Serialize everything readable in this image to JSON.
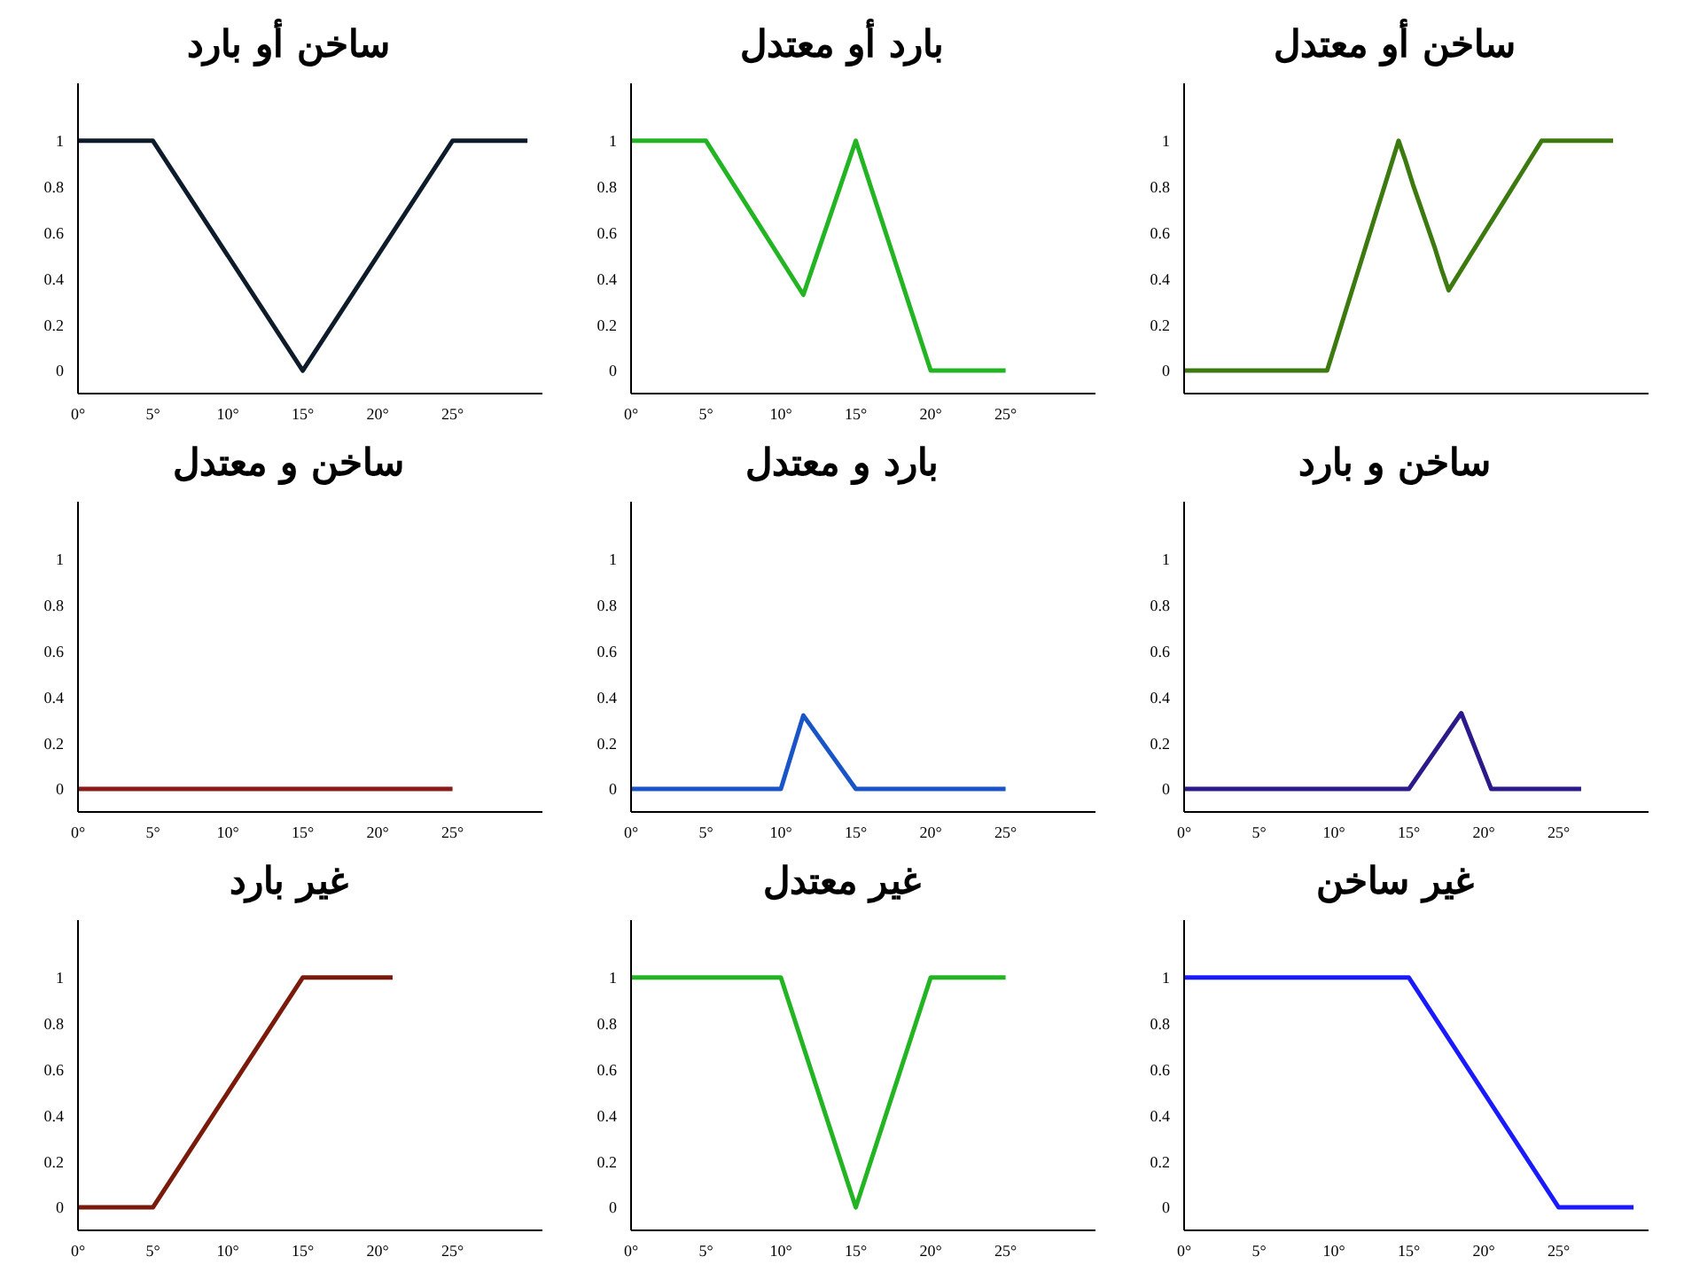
{
  "chart_data": [
    {
      "type": "line",
      "title": "ساخن أو بارد",
      "x": [
        0,
        5,
        15,
        25,
        30
      ],
      "values": [
        1,
        1,
        0,
        1,
        1
      ],
      "color": "#0d1b2a",
      "xlim": [
        0,
        31
      ],
      "xticks": [
        {
          "value": 0,
          "label": "0°"
        },
        {
          "value": 5,
          "label": "5°"
        },
        {
          "value": 10,
          "label": "10°"
        },
        {
          "value": 15,
          "label": "15°"
        },
        {
          "value": 20,
          "label": "20°"
        },
        {
          "value": 25,
          "label": "25°"
        }
      ],
      "ylim": [
        -0.1,
        1.25
      ],
      "yticks": [
        0,
        0.2,
        0.4,
        0.6,
        0.8,
        1
      ],
      "grid": false,
      "marker": "none"
    },
    {
      "type": "line",
      "title": "بارد أو معتدل",
      "x": [
        0,
        5,
        11.5,
        15,
        20,
        25
      ],
      "values": [
        1,
        1,
        0.33,
        1,
        0,
        0
      ],
      "color": "#22b422",
      "xlim": [
        0,
        31
      ],
      "xticks": [
        {
          "value": 0,
          "label": "0°"
        },
        {
          "value": 5,
          "label": "5°"
        },
        {
          "value": 10,
          "label": "10°"
        },
        {
          "value": 15,
          "label": "15°"
        },
        {
          "value": 20,
          "label": "20°"
        },
        {
          "value": 25,
          "label": "25°"
        }
      ],
      "ylim": [
        -0.1,
        1.25
      ],
      "yticks": [
        0,
        0.2,
        0.4,
        0.6,
        0.8,
        1
      ],
      "grid": false,
      "marker": "none"
    },
    {
      "type": "line",
      "title": "ساخن أو معتدل",
      "categories": [
        null,
        null,
        null,
        null,
        null,
        null,
        null,
        null,
        null,
        null,
        null,
        null,
        null,
        null,
        null,
        null,
        null,
        null,
        null,
        null,
        null,
        null,
        null,
        null,
        null,
        null,
        null,
        null,
        null,
        null,
        null,
        null,
        null,
        null,
        null,
        null,
        null,
        null,
        null,
        null,
        null,
        null,
        null,
        null,
        null,
        null,
        null,
        null,
        null,
        null,
        null,
        null,
        null,
        null,
        null,
        null,
        null,
        null,
        null,
        null,
        null
      ],
      "values": [
        0,
        0,
        0,
        0,
        0,
        0,
        0,
        0,
        0,
        0,
        0,
        0,
        0,
        0,
        0,
        0,
        0,
        0,
        0,
        0,
        0,
        0.1,
        0.2,
        0.3,
        0.4,
        0.5,
        0.6,
        0.7,
        0.8,
        0.9,
        1,
        0.91,
        0.81,
        0.72,
        0.63,
        0.54,
        0.44,
        0.35,
        0.4,
        0.45,
        0.5,
        0.55,
        0.6,
        0.65,
        0.7,
        0.75,
        0.8,
        0.85,
        0.9,
        0.95,
        1,
        1,
        1,
        1,
        1,
        1,
        1,
        1,
        1,
        1,
        1
      ],
      "color": "#3c7a10",
      "ylim": [
        -0.1,
        1.25
      ],
      "yticks": [
        0,
        0.2,
        0.4,
        0.6,
        0.8,
        1
      ],
      "tick_labels": "y",
      "grid": false,
      "marker": "none"
    },
    {
      "type": "line",
      "title": "ساخن و معتدل",
      "x": [
        0,
        25
      ],
      "values": [
        0,
        0
      ],
      "color": "#8b1a1a",
      "xlim": [
        0,
        31
      ],
      "xticks": [
        {
          "value": 0,
          "label": "0°"
        },
        {
          "value": 5,
          "label": "5°"
        },
        {
          "value": 10,
          "label": "10°"
        },
        {
          "value": 15,
          "label": "15°"
        },
        {
          "value": 20,
          "label": "20°"
        },
        {
          "value": 25,
          "label": "25°"
        }
      ],
      "ylim": [
        -0.1,
        1.25
      ],
      "yticks": [
        0,
        0.2,
        0.4,
        0.6,
        0.8,
        1
      ],
      "grid": false,
      "marker": "none"
    },
    {
      "type": "line",
      "title": "بارد و معتدل",
      "x": [
        0,
        10,
        11.5,
        15,
        25
      ],
      "values": [
        0,
        0,
        0.32,
        0,
        0
      ],
      "color": "#1a55c8",
      "xlim": [
        0,
        31
      ],
      "xticks": [
        {
          "value": 0,
          "label": "0°"
        },
        {
          "value": 5,
          "label": "5°"
        },
        {
          "value": 10,
          "label": "10°"
        },
        {
          "value": 15,
          "label": "15°"
        },
        {
          "value": 20,
          "label": "20°"
        },
        {
          "value": 25,
          "label": "25°"
        }
      ],
      "ylim": [
        -0.1,
        1.25
      ],
      "yticks": [
        0,
        0.2,
        0.4,
        0.6,
        0.8,
        1
      ],
      "grid": false,
      "marker": "none"
    },
    {
      "type": "line",
      "title": "ساخن و بارد",
      "x": [
        0,
        15,
        18.5,
        20.5,
        26.5
      ],
      "values": [
        0,
        0,
        0.33,
        0,
        0
      ],
      "color": "#2a1a8a",
      "xlim": [
        0,
        31
      ],
      "xticks": [
        {
          "value": 0,
          "label": "0°"
        },
        {
          "value": 5,
          "label": "5°"
        },
        {
          "value": 10,
          "label": "10°"
        },
        {
          "value": 15,
          "label": "15°"
        },
        {
          "value": 20,
          "label": "20°"
        },
        {
          "value": 25,
          "label": "25°"
        }
      ],
      "ylim": [
        -0.1,
        1.25
      ],
      "yticks": [
        0,
        0.2,
        0.4,
        0.6,
        0.8,
        1
      ],
      "grid": false,
      "marker": "none"
    },
    {
      "type": "line",
      "title": "غير بارد",
      "x": [
        0,
        5,
        15,
        21
      ],
      "values": [
        0,
        0,
        1,
        1
      ],
      "color": "#7a1a0a",
      "xlim": [
        0,
        31
      ],
      "xticks": [
        {
          "value": 0,
          "label": "0°"
        },
        {
          "value": 5,
          "label": "5°"
        },
        {
          "value": 10,
          "label": "10°"
        },
        {
          "value": 15,
          "label": "15°"
        },
        {
          "value": 20,
          "label": "20°"
        },
        {
          "value": 25,
          "label": "25°"
        }
      ],
      "ylim": [
        -0.1,
        1.25
      ],
      "yticks": [
        0,
        0.2,
        0.4,
        0.6,
        0.8,
        1
      ],
      "grid": false,
      "marker": "none"
    },
    {
      "type": "line",
      "title": "غير معتدل",
      "x": [
        0,
        10,
        15,
        20,
        25
      ],
      "values": [
        1,
        1,
        0,
        1,
        1
      ],
      "color": "#22b422",
      "xlim": [
        0,
        31
      ],
      "xticks": [
        {
          "value": 0,
          "label": "0°"
        },
        {
          "value": 5,
          "label": "5°"
        },
        {
          "value": 10,
          "label": "10°"
        },
        {
          "value": 15,
          "label": "15°"
        },
        {
          "value": 20,
          "label": "20°"
        },
        {
          "value": 25,
          "label": "25°"
        }
      ],
      "ylim": [
        -0.1,
        1.25
      ],
      "yticks": [
        0,
        0.2,
        0.4,
        0.6,
        0.8,
        1
      ],
      "grid": false,
      "marker": "none"
    },
    {
      "type": "line",
      "title": "غير ساخن",
      "x": [
        0,
        15,
        25,
        30
      ],
      "values": [
        1,
        1,
        0,
        0
      ],
      "color": "#1a1aff",
      "xlim": [
        0,
        31
      ],
      "xticks": [
        {
          "value": 0,
          "label": "0°"
        },
        {
          "value": 5,
          "label": "5°"
        },
        {
          "value": 10,
          "label": "10°"
        },
        {
          "value": 15,
          "label": "15°"
        },
        {
          "value": 20,
          "label": "20°"
        },
        {
          "value": 25,
          "label": "25°"
        }
      ],
      "ylim": [
        -0.1,
        1.25
      ],
      "yticks": [
        0,
        0.2,
        0.4,
        0.6,
        0.8,
        1
      ],
      "grid": false,
      "marker": "none"
    }
  ]
}
